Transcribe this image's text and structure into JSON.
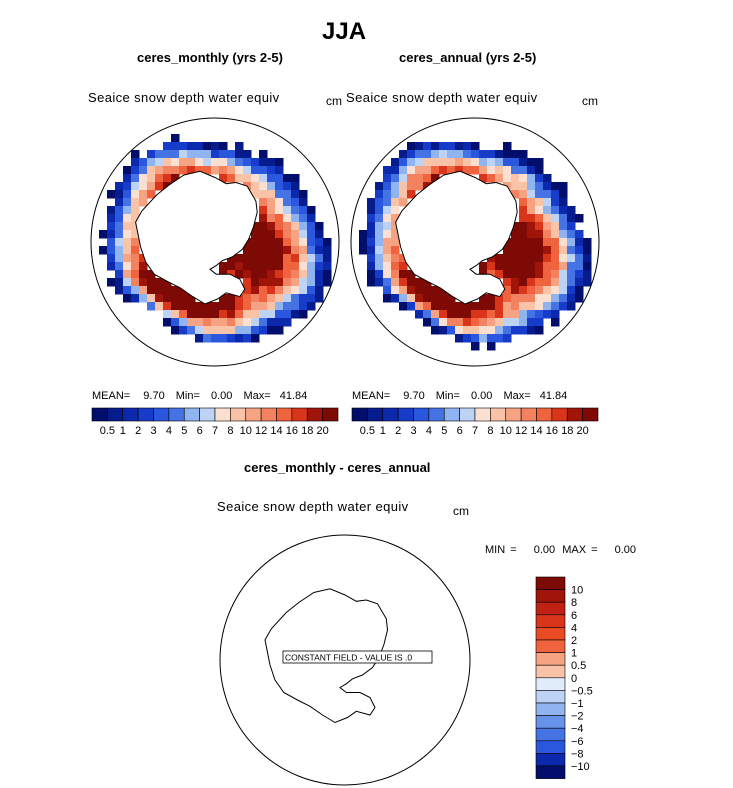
{
  "page_title": "JJA",
  "colors": {
    "positive": [
      "#fbe0d2",
      "#f9c3a8",
      "#f6a383",
      "#f38260",
      "#ef643f",
      "#e94b25",
      "#d8351a",
      "#bf2212",
      "#a01509",
      "#7d0a04"
    ],
    "negative": [
      "#e1ecfb",
      "#bcd3f6",
      "#8fb4f0",
      "#6893ea",
      "#4673e4",
      "#2a57dd",
      "#173cc9",
      "#0c29ad",
      "#061b8c",
      "#020e6b"
    ],
    "outline": "#000000"
  },
  "panels": [
    {
      "title": "ceres_monthly (yrs 2-5)",
      "variable": "Seaice snow depth water equiv",
      "unit": "cm",
      "mean_label": "MEAN=",
      "mean": "9.70",
      "min_label": "Min=",
      "min": "0.00",
      "max_label": "Max=",
      "max": "41.84"
    },
    {
      "title": "ceres_annual (yrs 2-5)",
      "variable": "Seaice snow depth water equiv",
      "unit": "cm",
      "mean_label": "MEAN=",
      "mean": "9.70",
      "min_label": "Min=",
      "min": "0.00",
      "max_label": "Max=",
      "max": "41.84"
    }
  ],
  "diff": {
    "title": "ceres_monthly - ceres_annual",
    "variable": "Seaice snow depth water equiv",
    "unit": "cm",
    "min_label": "MIN =",
    "min": "0.00",
    "max_label": "MAX =",
    "max": "0.00",
    "note": "CONSTANT FIELD - VALUE IS .0"
  },
  "chart_data": [
    {
      "type": "heatmap",
      "projection": "south polar stereographic",
      "title": "ceres_monthly (yrs 2-5)",
      "variable": "Seaice snow depth water equiv",
      "unit": "cm",
      "stats": {
        "mean": 9.7,
        "min": 0.0,
        "max": 41.84
      },
      "colorbar_levels": [
        0.5,
        1,
        2,
        3,
        4,
        5,
        6,
        7,
        8,
        10,
        12,
        14,
        16,
        18,
        20
      ],
      "colorbar_tick_labels": [
        "0.5",
        "1",
        "2",
        "3",
        "4",
        "5",
        "6",
        "7",
        "8",
        "10",
        "12",
        "14",
        "16",
        "18",
        "20"
      ]
    },
    {
      "type": "heatmap",
      "projection": "south polar stereographic",
      "title": "ceres_annual (yrs 2-5)",
      "variable": "Seaice snow depth water equiv",
      "unit": "cm",
      "stats": {
        "mean": 9.7,
        "min": 0.0,
        "max": 41.84
      },
      "colorbar_levels": [
        0.5,
        1,
        2,
        3,
        4,
        5,
        6,
        7,
        8,
        10,
        12,
        14,
        16,
        18,
        20
      ],
      "colorbar_tick_labels": [
        "0.5",
        "1",
        "2",
        "3",
        "4",
        "5",
        "6",
        "7",
        "8",
        "10",
        "12",
        "14",
        "16",
        "18",
        "20"
      ]
    },
    {
      "type": "heatmap",
      "projection": "south polar stereographic",
      "title": "ceres_monthly - ceres_annual",
      "variable": "Seaice snow depth water equiv",
      "unit": "cm",
      "stats": {
        "min": 0.0,
        "max": 0.0
      },
      "annotation": "CONSTANT FIELD - VALUE IS .0",
      "colorbar_levels": [
        10,
        8,
        6,
        4,
        2,
        1,
        0.5,
        0,
        -0.5,
        -1,
        -2,
        -4,
        -6,
        -8,
        -10
      ],
      "colorbar_tick_labels": [
        "10",
        "8",
        "6",
        "4",
        "2",
        "1",
        "0.5",
        "0",
        "−0.5",
        "−1",
        "−2",
        "−4",
        "−6",
        "−8",
        "−10"
      ]
    }
  ]
}
